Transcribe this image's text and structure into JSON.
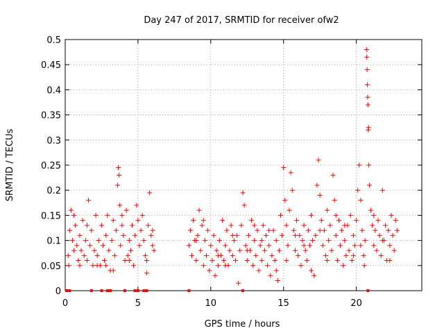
{
  "chart_data": {
    "type": "scatter",
    "title": "Day 247 of 2017, SRMTID for receiver ofw2",
    "xlabel": "GPS time / hours",
    "ylabel": "SRMTID / TECUs",
    "xlim": [
      0,
      24.5
    ],
    "ylim": [
      0,
      0.5
    ],
    "x_ticks": [
      0,
      5,
      10,
      15,
      20
    ],
    "y_ticks": [
      0,
      0.05,
      0.1,
      0.15,
      0.2,
      0.25,
      0.3,
      0.35,
      0.4,
      0.45,
      0.5
    ],
    "grid": true,
    "marker": "+",
    "color": "#ff0000",
    "series": [
      {
        "name": "SRMTID",
        "note": "approximate representative sample of the dense point cloud",
        "points": [
          [
            0.1,
            0.0
          ],
          [
            0.3,
            0.0
          ],
          [
            1.8,
            0.0
          ],
          [
            2.5,
            0.0
          ],
          [
            2.9,
            0.0
          ],
          [
            3.0,
            0.0
          ],
          [
            3.1,
            0.0
          ],
          [
            4.1,
            0.0
          ],
          [
            4.8,
            0.0
          ],
          [
            5.0,
            0.0
          ],
          [
            5.4,
            0.0
          ],
          [
            5.6,
            0.0
          ],
          [
            8.5,
            0.0
          ],
          [
            12.2,
            0.0
          ],
          [
            20.8,
            0.0
          ],
          [
            0.2,
            0.07
          ],
          [
            0.3,
            0.12
          ],
          [
            0.4,
            0.16
          ],
          [
            0.5,
            0.1
          ],
          [
            0.6,
            0.08
          ],
          [
            0.7,
            0.13
          ],
          [
            0.8,
            0.09
          ],
          [
            0.9,
            0.06
          ],
          [
            1.0,
            0.11
          ],
          [
            1.1,
            0.08
          ],
          [
            1.2,
            0.14
          ],
          [
            1.3,
            0.07
          ],
          [
            1.4,
            0.1
          ],
          [
            1.5,
            0.06
          ],
          [
            1.6,
            0.18
          ],
          [
            1.7,
            0.09
          ],
          [
            1.8,
            0.12
          ],
          [
            1.9,
            0.05
          ],
          [
            2.0,
            0.08
          ],
          [
            2.1,
            0.15
          ],
          [
            2.2,
            0.07
          ],
          [
            2.3,
            0.1
          ],
          [
            2.4,
            0.05
          ],
          [
            2.5,
            0.13
          ],
          [
            2.6,
            0.09
          ],
          [
            2.7,
            0.06
          ],
          [
            2.8,
            0.11
          ],
          [
            2.9,
            0.15
          ],
          [
            3.0,
            0.08
          ],
          [
            3.1,
            0.04
          ],
          [
            3.2,
            0.1
          ],
          [
            3.3,
            0.14
          ],
          [
            3.4,
            0.07
          ],
          [
            3.5,
            0.12
          ],
          [
            3.6,
            0.21
          ],
          [
            3.65,
            0.245
          ],
          [
            3.7,
            0.23
          ],
          [
            3.75,
            0.17
          ],
          [
            3.8,
            0.09
          ],
          [
            3.9,
            0.13
          ],
          [
            4.0,
            0.11
          ],
          [
            4.1,
            0.06
          ],
          [
            4.2,
            0.16
          ],
          [
            4.3,
            0.07
          ],
          [
            4.4,
            0.1
          ],
          [
            4.5,
            0.08
          ],
          [
            4.6,
            0.13
          ],
          [
            4.7,
            0.05
          ],
          [
            4.8,
            0.11
          ],
          [
            4.9,
            0.17
          ],
          [
            5.0,
            0.14
          ],
          [
            5.1,
            0.09
          ],
          [
            5.2,
            0.12
          ],
          [
            5.3,
            0.15
          ],
          [
            5.4,
            0.1
          ],
          [
            5.5,
            0.07
          ],
          [
            5.6,
            0.06
          ],
          [
            5.7,
            0.13
          ],
          [
            5.8,
            0.195
          ],
          [
            5.9,
            0.11
          ],
          [
            6.0,
            0.09
          ],
          [
            6.1,
            0.08
          ],
          [
            0.25,
            0.05
          ],
          [
            0.6,
            0.15
          ],
          [
            1.0,
            0.05
          ],
          [
            1.5,
            0.13
          ],
          [
            2.2,
            0.05
          ],
          [
            2.8,
            0.05
          ],
          [
            3.3,
            0.04
          ],
          [
            3.9,
            0.15
          ],
          [
            4.4,
            0.06
          ],
          [
            5.6,
            0.035
          ],
          [
            6.0,
            0.12
          ],
          [
            8.5,
            0.09
          ],
          [
            8.6,
            0.12
          ],
          [
            8.7,
            0.07
          ],
          [
            8.8,
            0.14
          ],
          [
            8.9,
            0.1
          ],
          [
            9.0,
            0.06
          ],
          [
            9.1,
            0.11
          ],
          [
            9.2,
            0.16
          ],
          [
            9.3,
            0.08
          ],
          [
            9.4,
            0.13
          ],
          [
            9.5,
            0.05
          ],
          [
            9.6,
            0.1
          ],
          [
            9.7,
            0.07
          ],
          [
            9.8,
            0.12
          ],
          [
            9.9,
            0.04
          ],
          [
            10.0,
            0.09
          ],
          [
            10.1,
            0.06
          ],
          [
            10.2,
            0.11
          ],
          [
            10.3,
            0.03
          ],
          [
            10.4,
            0.08
          ],
          [
            10.5,
            0.05
          ],
          [
            10.6,
            0.1
          ],
          [
            10.7,
            0.07
          ],
          [
            10.8,
            0.14
          ],
          [
            10.9,
            0.06
          ],
          [
            11.0,
            0.09
          ],
          [
            11.1,
            0.12
          ],
          [
            11.2,
            0.05
          ],
          [
            11.3,
            0.08
          ],
          [
            11.4,
            0.13
          ],
          [
            11.5,
            0.07
          ],
          [
            11.6,
            0.1
          ],
          [
            11.7,
            0.06
          ],
          [
            11.8,
            0.11
          ],
          [
            11.9,
            0.015
          ],
          [
            12.0,
            0.08
          ],
          [
            12.1,
            0.13
          ],
          [
            12.2,
            0.195
          ],
          [
            12.3,
            0.17
          ],
          [
            12.4,
            0.09
          ],
          [
            12.5,
            0.06
          ],
          [
            12.6,
            0.11
          ],
          [
            12.7,
            0.08
          ],
          [
            12.8,
            0.14
          ],
          [
            12.9,
            0.05
          ],
          [
            13.0,
            0.1
          ],
          [
            13.1,
            0.07
          ],
          [
            13.2,
            0.12
          ],
          [
            13.3,
            0.04
          ],
          [
            13.4,
            0.09
          ],
          [
            13.5,
            0.06
          ],
          [
            13.6,
            0.13
          ],
          [
            13.7,
            0.08
          ],
          [
            13.8,
            0.11
          ],
          [
            13.9,
            0.05
          ],
          [
            14.0,
            0.09
          ],
          [
            14.1,
            0.03
          ],
          [
            14.2,
            0.07
          ],
          [
            14.3,
            0.12
          ],
          [
            14.4,
            0.06
          ],
          [
            14.5,
            0.1
          ],
          [
            14.6,
            0.02
          ],
          [
            14.7,
            0.08
          ],
          [
            14.8,
            0.15
          ],
          [
            14.9,
            0.11
          ],
          [
            15.0,
            0.245
          ],
          [
            15.1,
            0.18
          ],
          [
            15.2,
            0.13
          ],
          [
            15.3,
            0.09
          ],
          [
            15.4,
            0.16
          ],
          [
            15.5,
            0.235
          ],
          [
            15.6,
            0.2
          ],
          [
            15.7,
            0.12
          ],
          [
            15.8,
            0.08
          ],
          [
            15.9,
            0.14
          ],
          [
            16.0,
            0.07
          ],
          [
            16.1,
            0.11
          ],
          [
            16.2,
            0.05
          ],
          [
            16.3,
            0.1
          ],
          [
            16.4,
            0.13
          ],
          [
            16.5,
            0.08
          ],
          [
            16.6,
            0.06
          ],
          [
            16.7,
            0.12
          ],
          [
            16.8,
            0.09
          ],
          [
            16.9,
            0.15
          ],
          [
            17.0,
            0.1
          ],
          [
            17.1,
            0.03
          ],
          [
            17.2,
            0.11
          ],
          [
            17.3,
            0.21
          ],
          [
            17.4,
            0.26
          ],
          [
            17.5,
            0.19
          ],
          [
            17.6,
            0.14
          ],
          [
            17.7,
            0.09
          ],
          [
            17.8,
            0.12
          ],
          [
            17.9,
            0.07
          ],
          [
            18.0,
            0.16
          ],
          [
            18.1,
            0.1
          ],
          [
            18.2,
            0.13
          ],
          [
            18.3,
            0.08
          ],
          [
            18.4,
            0.23
          ],
          [
            18.5,
            0.18
          ],
          [
            18.6,
            0.11
          ],
          [
            18.7,
            0.06
          ],
          [
            18.8,
            0.14
          ],
          [
            18.9,
            0.09
          ],
          [
            19.0,
            0.12
          ],
          [
            19.1,
            0.05
          ],
          [
            19.2,
            0.1
          ],
          [
            19.3,
            0.07
          ],
          [
            19.4,
            0.13
          ],
          [
            19.5,
            0.08
          ],
          [
            19.6,
            0.15
          ],
          [
            19.7,
            0.06
          ],
          [
            19.8,
            0.11
          ],
          [
            19.9,
            0.09
          ],
          [
            20.0,
            0.14
          ],
          [
            20.1,
            0.2
          ],
          [
            20.2,
            0.25
          ],
          [
            20.3,
            0.18
          ],
          [
            20.4,
            0.12
          ],
          [
            20.5,
            0.07
          ],
          [
            20.55,
            0.05
          ],
          [
            20.6,
            0.1
          ],
          [
            20.7,
            0.48
          ],
          [
            20.72,
            0.465
          ],
          [
            20.74,
            0.44
          ],
          [
            20.76,
            0.41
          ],
          [
            20.78,
            0.385
          ],
          [
            20.8,
            0.37
          ],
          [
            20.82,
            0.32
          ],
          [
            20.84,
            0.325
          ],
          [
            20.86,
            0.25
          ],
          [
            20.9,
            0.21
          ],
          [
            21.0,
            0.16
          ],
          [
            21.1,
            0.13
          ],
          [
            21.2,
            0.09
          ],
          [
            21.3,
            0.12
          ],
          [
            21.4,
            0.08
          ],
          [
            21.5,
            0.14
          ],
          [
            21.6,
            0.11
          ],
          [
            21.7,
            0.07
          ],
          [
            21.8,
            0.2
          ],
          [
            21.9,
            0.1
          ],
          [
            22.0,
            0.13
          ],
          [
            22.1,
            0.06
          ],
          [
            22.2,
            0.12
          ],
          [
            22.3,
            0.09
          ],
          [
            22.4,
            0.15
          ],
          [
            22.5,
            0.11
          ],
          [
            22.6,
            0.08
          ],
          [
            22.7,
            0.14
          ],
          [
            22.8,
            0.12
          ],
          [
            9.0,
            0.1
          ],
          [
            9.5,
            0.14
          ],
          [
            10.5,
            0.07
          ],
          [
            11.0,
            0.05
          ],
          [
            11.5,
            0.11
          ],
          [
            12.5,
            0.08
          ],
          [
            13.0,
            0.13
          ],
          [
            13.5,
            0.1
          ],
          [
            14.0,
            0.12
          ],
          [
            14.5,
            0.04
          ],
          [
            15.2,
            0.06
          ],
          [
            15.8,
            0.11
          ],
          [
            16.4,
            0.09
          ],
          [
            16.9,
            0.04
          ],
          [
            17.5,
            0.12
          ],
          [
            18.0,
            0.06
          ],
          [
            18.6,
            0.15
          ],
          [
            19.2,
            0.13
          ],
          [
            19.8,
            0.07
          ],
          [
            20.3,
            0.09
          ],
          [
            21.2,
            0.15
          ],
          [
            21.8,
            0.1
          ],
          [
            22.3,
            0.06
          ]
        ]
      }
    ]
  }
}
